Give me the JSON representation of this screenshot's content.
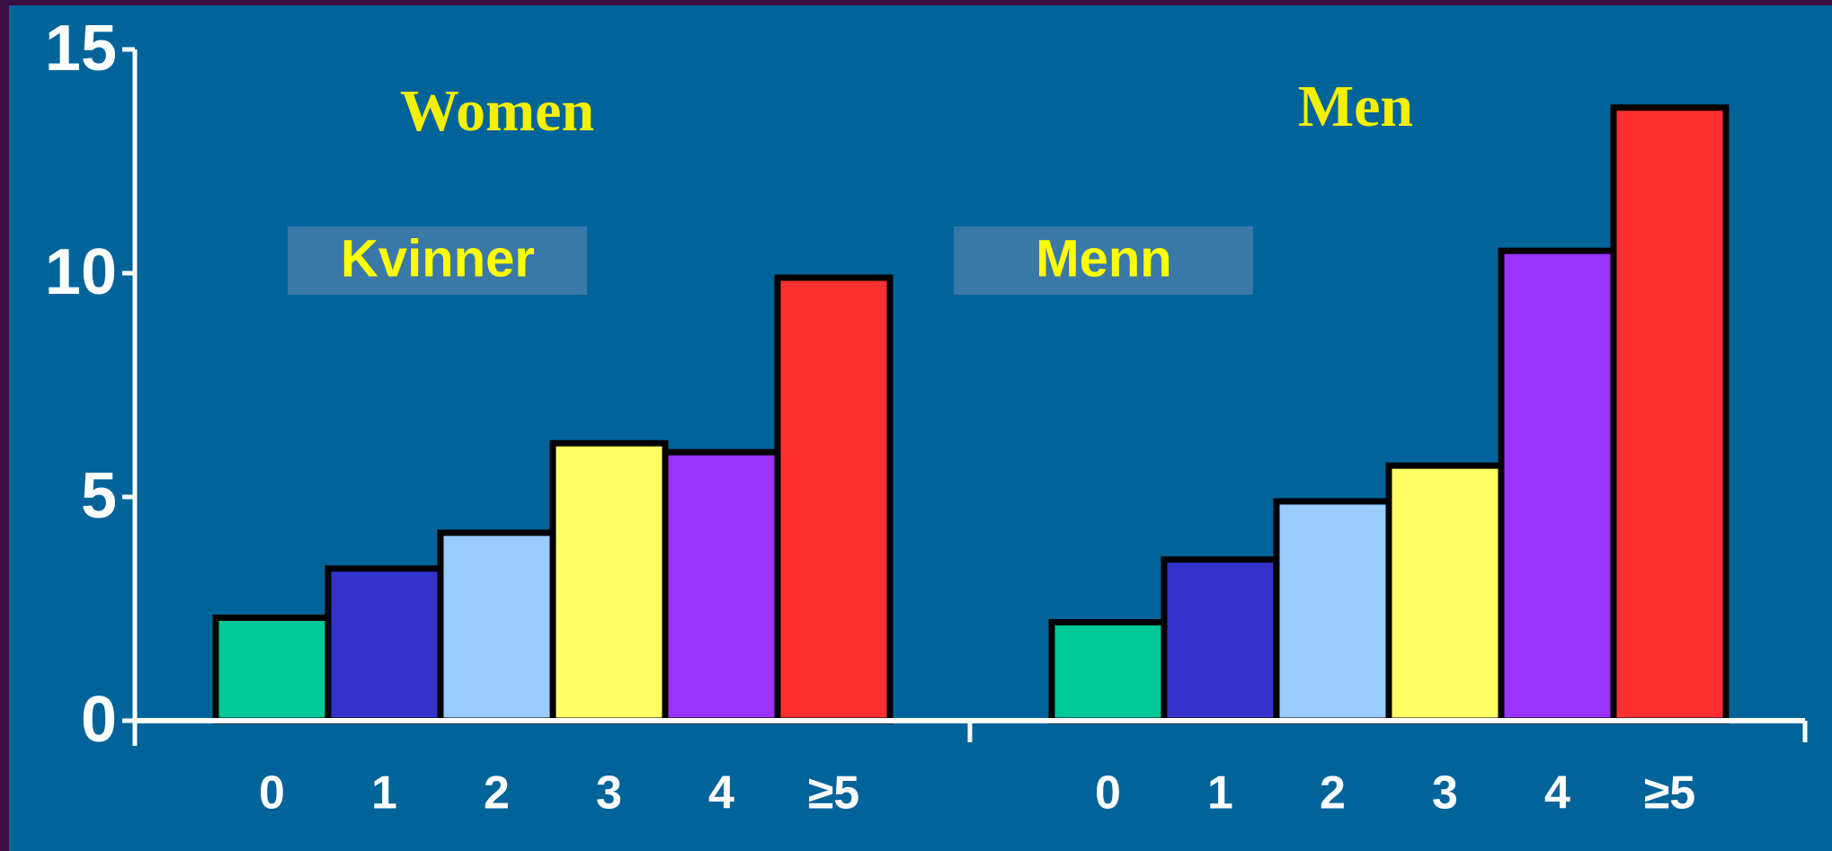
{
  "chart_data": {
    "type": "bar",
    "categories": [
      "0",
      "1",
      "2",
      "3",
      "4",
      "≥5"
    ],
    "colors": [
      "#00c896",
      "#3333cc",
      "#99ccff",
      "#ffff66",
      "#9933ff",
      "#ff3030"
    ],
    "series": [
      {
        "name": "Women",
        "label": "Kvinner",
        "values": [
          2.3,
          3.4,
          4.2,
          6.2,
          6.0,
          9.9
        ]
      },
      {
        "name": "Men",
        "label": "Menn",
        "values": [
          2.2,
          3.6,
          4.9,
          5.7,
          10.5,
          13.7
        ]
      }
    ],
    "ylim": [
      0,
      15
    ],
    "yticks": [
      0,
      5,
      10,
      15
    ],
    "grid": false
  }
}
